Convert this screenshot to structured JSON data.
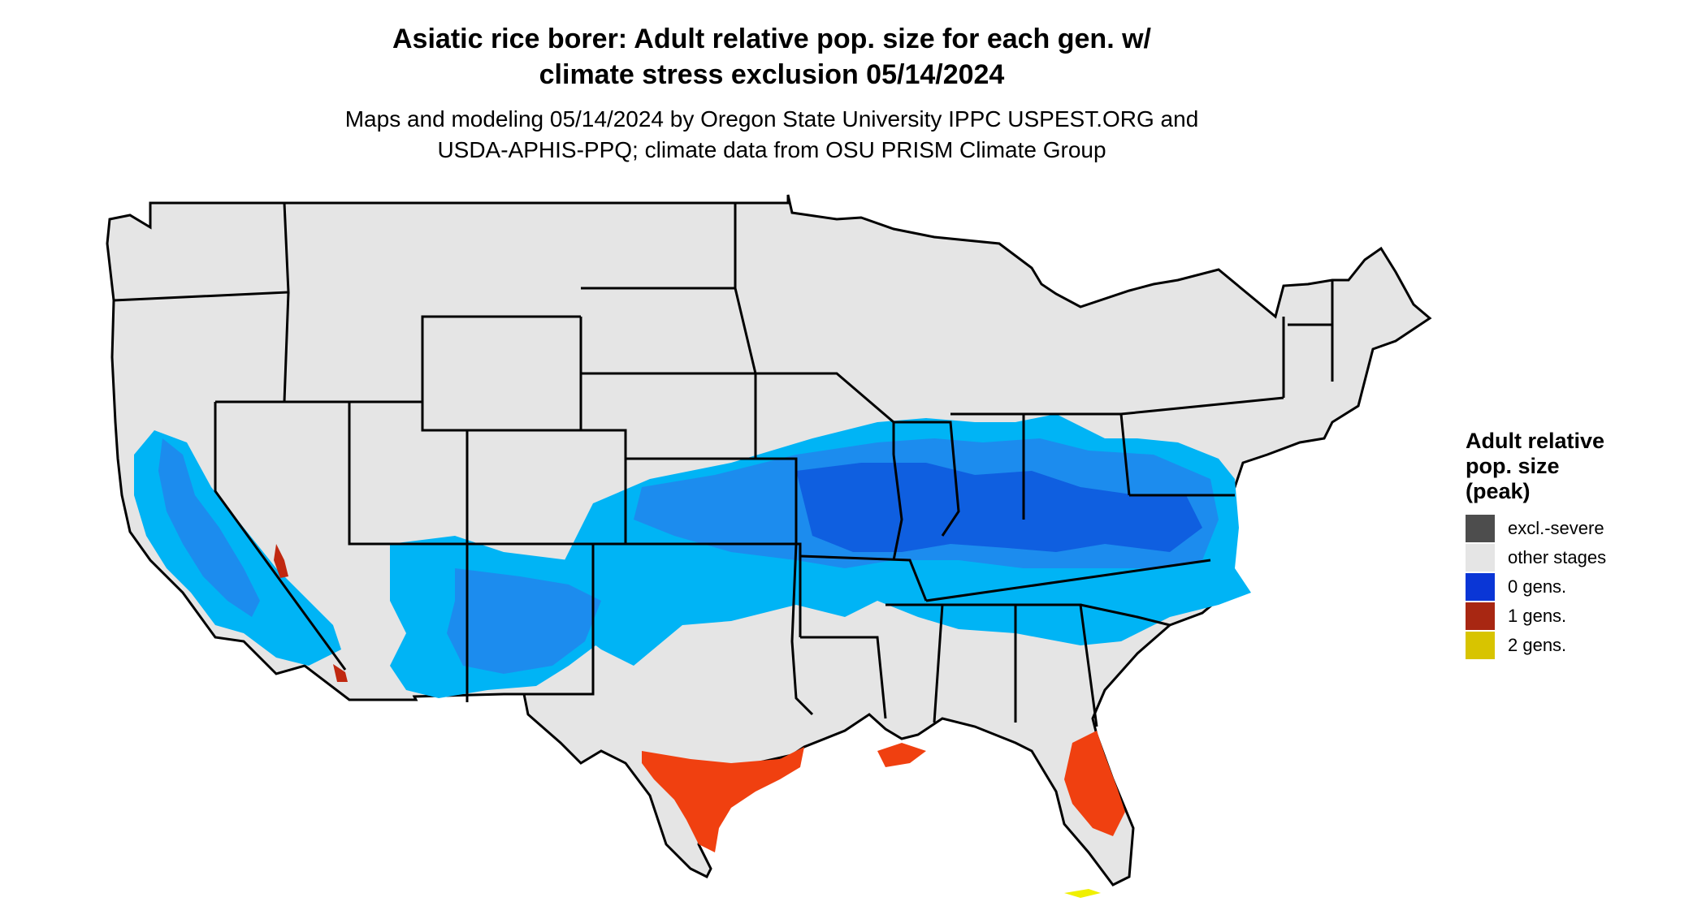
{
  "title_line1": "Asiatic rice borer: Adult relative pop. size for each gen. w/",
  "title_line2": "climate stress exclusion 05/14/2024",
  "subtitle_line1": "Maps and modeling 05/14/2024 by Oregon State University IPPC USPEST.ORG and",
  "subtitle_line2": "USDA-APHIS-PPQ; climate data from OSU PRISM Climate Group",
  "legend": {
    "title_line1": "Adult relative",
    "title_line2": "pop. size",
    "title_line3": "(peak)",
    "items": [
      {
        "label": "excl.-severe",
        "color": "#4d4d4d"
      },
      {
        "label": "other stages",
        "color": "#e5e5e5"
      },
      {
        "label": "0 gens.",
        "color": "#0a36d6"
      },
      {
        "label": "1 gens.",
        "color": "#a82712"
      },
      {
        "label": "2 gens.",
        "color": "#d8c400"
      }
    ]
  },
  "map_colors": {
    "land": "#e5e5e5",
    "border": "#000000",
    "light_blue": "#00b4f5",
    "mid_blue": "#1c8cee",
    "dark_blue": "#0f5fe0",
    "orange": "#f04010",
    "red": "#c02810",
    "yellow": "#f0f000"
  }
}
